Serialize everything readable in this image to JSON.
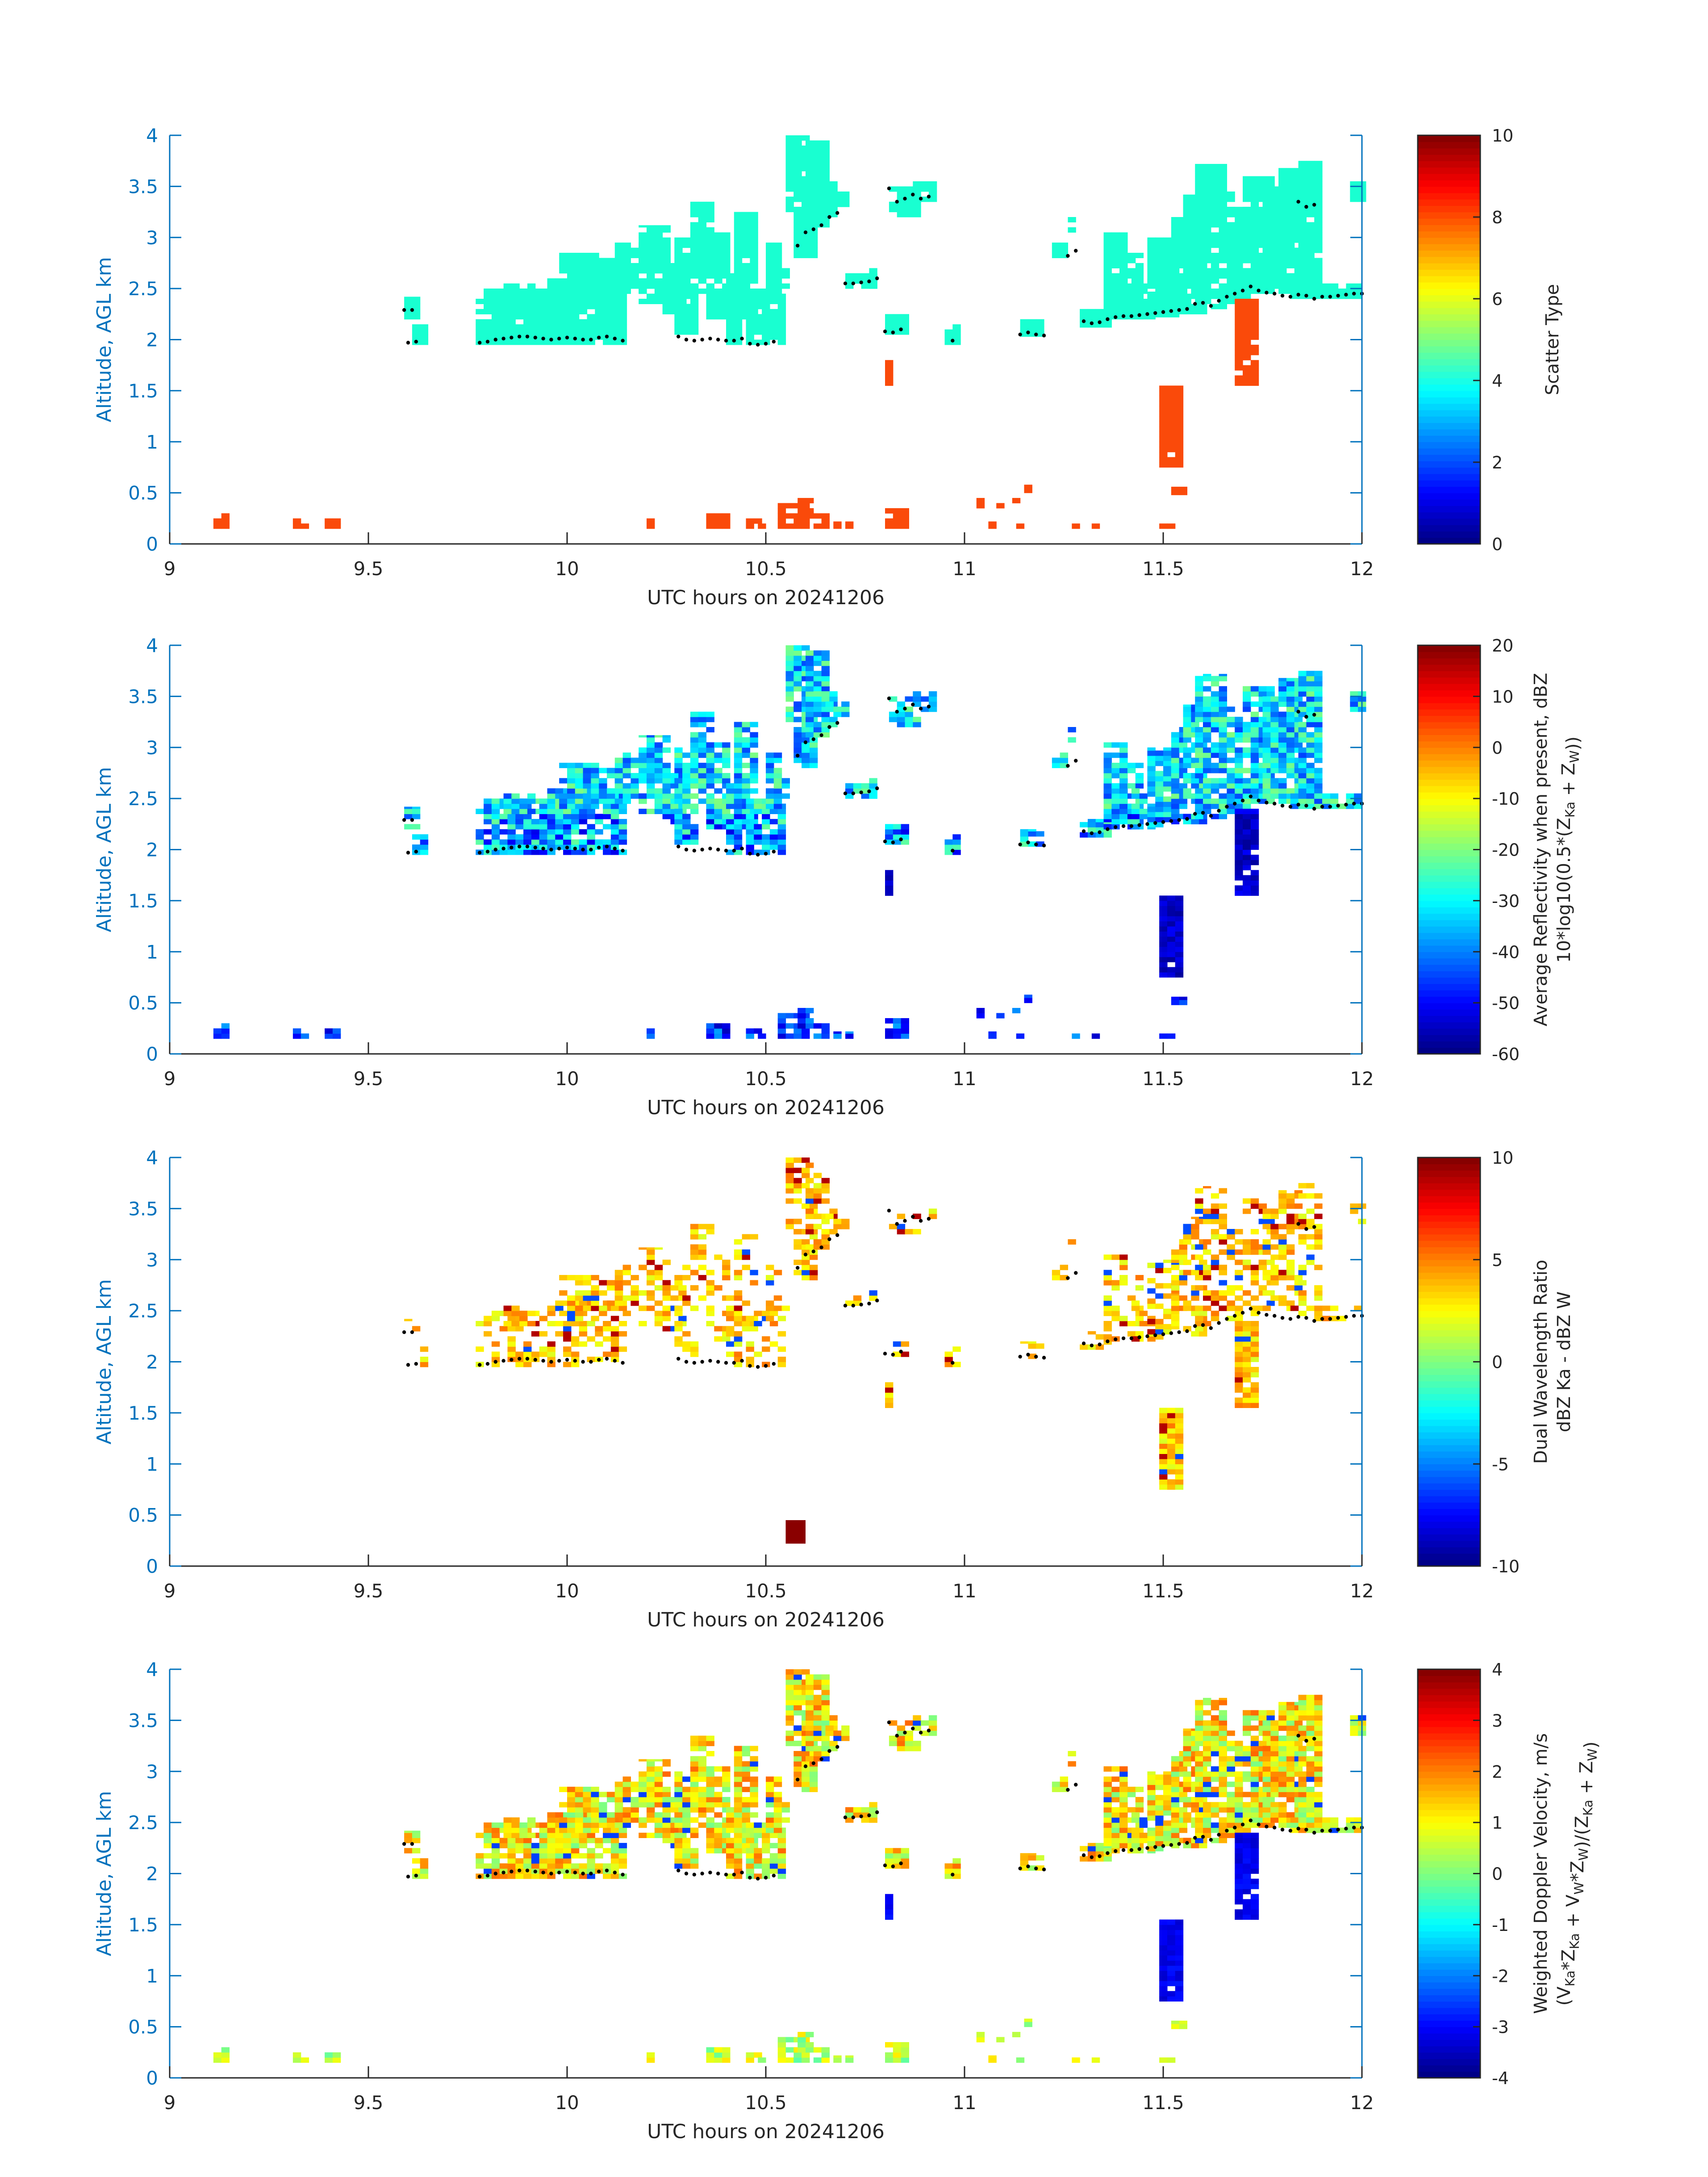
{
  "figure": {
    "colors": {
      "axis": "#0072bd",
      "background": "#ffffff",
      "bottom_line": "#262626"
    }
  },
  "chart_data": [
    {
      "type": "heatmap",
      "xlabel": "UTC hours on 20241206",
      "ylabel": "Altitude, AGL km",
      "xlim": [
        9,
        12
      ],
      "ylim": [
        0,
        4
      ],
      "xticks": [
        "9",
        "9.5",
        "10",
        "10.5",
        "11",
        "11.5",
        "12"
      ],
      "yticks": [
        "0",
        "0.5",
        "1",
        "1.5",
        "2",
        "2.5",
        "3",
        "3.5",
        "4"
      ],
      "colorbar": {
        "label": [
          "Scatter Type"
        ],
        "range": [
          0,
          10
        ],
        "ticks": [
          "0",
          "2",
          "4",
          "6",
          "8",
          "10"
        ]
      },
      "categories": [
        {
          "value": 3.8,
          "color": "#19ffd1"
        },
        {
          "value": 8.4,
          "color": "#fa4a0a"
        }
      ]
    },
    {
      "type": "heatmap",
      "xlabel": "UTC hours on 20241206",
      "ylabel": "Altitude, AGL km",
      "xlim": [
        9,
        12
      ],
      "ylim": [
        0,
        4
      ],
      "xticks": [
        "9",
        "9.5",
        "10",
        "10.5",
        "11",
        "11.5",
        "12"
      ],
      "yticks": [
        "0",
        "0.5",
        "1",
        "1.5",
        "2",
        "2.5",
        "3",
        "3.5",
        "4"
      ],
      "colorbar": {
        "label": [
          "Average Reflectivity when present, dBZ",
          "10*log10(0.5*(Z_Ka + Z_W))"
        ],
        "range": [
          -60,
          20
        ],
        "ticks": [
          "-60",
          "-50",
          "-40",
          "-30",
          "-20",
          "-10",
          "0",
          "10",
          "20"
        ]
      }
    },
    {
      "type": "heatmap",
      "xlabel": "UTC hours on 20241206",
      "ylabel": "Altitude, AGL km",
      "xlim": [
        9,
        12
      ],
      "ylim": [
        0,
        4
      ],
      "xticks": [
        "9",
        "9.5",
        "10",
        "10.5",
        "11",
        "11.5",
        "12"
      ],
      "yticks": [
        "0",
        "0.5",
        "1",
        "1.5",
        "2",
        "2.5",
        "3",
        "3.5",
        "4"
      ],
      "colorbar": {
        "label": [
          "Dual Wavelength Ratio",
          "dBZ Ka - dBZ W"
        ],
        "range": [
          -10,
          10
        ],
        "ticks": [
          "-10",
          "-5",
          "0",
          "5",
          "10"
        ]
      }
    },
    {
      "type": "heatmap",
      "xlabel": "UTC hours on 20241206",
      "ylabel": "Altitude, AGL km",
      "xlim": [
        9,
        12
      ],
      "ylim": [
        0,
        4
      ],
      "xticks": [
        "9",
        "9.5",
        "10",
        "10.5",
        "11",
        "11.5",
        "12"
      ],
      "yticks": [
        "0",
        "0.5",
        "1",
        "1.5",
        "2",
        "2.5",
        "3",
        "3.5",
        "4"
      ],
      "colorbar": {
        "label": [
          "Weighted Doppler Velocity, m/s",
          "(V_Ka*Z_Ka + V_W*Z_W)/(Z_Ka + Z_W)"
        ],
        "range": [
          -4,
          4
        ],
        "ticks": [
          "-4",
          "-3",
          "-2",
          "-1",
          "0",
          "1",
          "2",
          "3",
          "4"
        ]
      }
    }
  ],
  "cloud_base_points": [
    [
      9.59,
      2.29
    ],
    [
      9.61,
      2.29
    ],
    [
      9.6,
      1.97
    ],
    [
      9.62,
      1.98
    ],
    [
      9.78,
      1.97
    ],
    [
      9.8,
      1.98
    ],
    [
      9.82,
      2.0
    ],
    [
      9.84,
      2.01
    ],
    [
      9.86,
      2.02
    ],
    [
      9.88,
      2.03
    ],
    [
      9.9,
      2.03
    ],
    [
      9.92,
      2.02
    ],
    [
      9.94,
      2.01
    ],
    [
      9.96,
      2.0
    ],
    [
      9.98,
      2.01
    ],
    [
      10.0,
      2.02
    ],
    [
      10.02,
      2.01
    ],
    [
      10.04,
      2.0
    ],
    [
      10.06,
      2.0
    ],
    [
      10.08,
      2.02
    ],
    [
      10.1,
      2.03
    ],
    [
      10.12,
      2.01
    ],
    [
      10.14,
      1.99
    ],
    [
      10.28,
      2.03
    ],
    [
      10.3,
      2.0
    ],
    [
      10.32,
      1.99
    ],
    [
      10.34,
      2.0
    ],
    [
      10.36,
      2.01
    ],
    [
      10.38,
      2.0
    ],
    [
      10.4,
      1.99
    ],
    [
      10.42,
      1.99
    ],
    [
      10.44,
      2.01
    ],
    [
      10.46,
      1.96
    ],
    [
      10.48,
      1.95
    ],
    [
      10.5,
      1.96
    ],
    [
      10.52,
      1.98
    ],
    [
      10.58,
      2.92
    ],
    [
      10.6,
      3.05
    ],
    [
      10.62,
      3.08
    ],
    [
      10.64,
      3.12
    ],
    [
      10.66,
      3.2
    ],
    [
      10.68,
      3.24
    ],
    [
      10.7,
      2.55
    ],
    [
      10.72,
      2.55
    ],
    [
      10.74,
      2.56
    ],
    [
      10.76,
      2.57
    ],
    [
      10.78,
      2.6
    ],
    [
      10.8,
      2.08
    ],
    [
      10.82,
      2.07
    ],
    [
      10.84,
      2.1
    ],
    [
      10.81,
      3.48
    ],
    [
      10.83,
      3.35
    ],
    [
      10.85,
      3.38
    ],
    [
      10.87,
      3.42
    ],
    [
      10.89,
      3.38
    ],
    [
      10.91,
      3.4
    ],
    [
      10.97,
      1.99
    ],
    [
      11.14,
      2.05
    ],
    [
      11.16,
      2.07
    ],
    [
      11.18,
      2.05
    ],
    [
      11.2,
      2.04
    ],
    [
      11.26,
      2.82
    ],
    [
      11.28,
      2.87
    ],
    [
      11.3,
      2.18
    ],
    [
      11.32,
      2.16
    ],
    [
      11.34,
      2.17
    ],
    [
      11.36,
      2.2
    ],
    [
      11.38,
      2.22
    ],
    [
      11.4,
      2.23
    ],
    [
      11.42,
      2.23
    ],
    [
      11.44,
      2.24
    ],
    [
      11.46,
      2.25
    ],
    [
      11.48,
      2.26
    ],
    [
      11.5,
      2.27
    ],
    [
      11.52,
      2.28
    ],
    [
      11.54,
      2.29
    ],
    [
      11.56,
      2.3
    ],
    [
      11.58,
      2.35
    ],
    [
      11.6,
      2.36
    ],
    [
      11.62,
      2.33
    ],
    [
      11.64,
      2.38
    ],
    [
      11.66,
      2.42
    ],
    [
      11.68,
      2.45
    ],
    [
      11.7,
      2.48
    ],
    [
      11.72,
      2.52
    ],
    [
      11.74,
      2.48
    ],
    [
      11.76,
      2.46
    ],
    [
      11.78,
      2.45
    ],
    [
      11.8,
      2.43
    ],
    [
      11.82,
      2.42
    ],
    [
      11.84,
      2.44
    ],
    [
      11.86,
      2.43
    ],
    [
      11.88,
      2.4
    ],
    [
      11.9,
      2.42
    ],
    [
      11.92,
      2.42
    ],
    [
      11.94,
      2.43
    ],
    [
      11.96,
      2.44
    ],
    [
      11.98,
      2.45
    ],
    [
      12.0,
      2.45
    ],
    [
      11.84,
      3.35
    ],
    [
      11.86,
      3.3
    ],
    [
      11.88,
      3.32
    ]
  ],
  "echo_regions": [
    [
      9.59,
      9.62,
      2.2,
      2.42
    ],
    [
      9.61,
      9.64,
      1.95,
      2.15
    ],
    [
      9.77,
      9.79,
      1.95,
      2.4
    ],
    [
      9.79,
      9.95,
      1.95,
      2.5
    ],
    [
      9.84,
      9.91,
      2.35,
      2.55
    ],
    [
      9.95,
      10.14,
      1.95,
      2.6
    ],
    [
      9.98,
      10.08,
      2.4,
      2.85
    ],
    [
      10.04,
      10.14,
      2.45,
      2.8
    ],
    [
      10.12,
      10.2,
      2.45,
      2.95
    ],
    [
      10.18,
      10.26,
      2.35,
      3.12
    ],
    [
      10.24,
      10.29,
      2.25,
      2.75
    ],
    [
      10.27,
      10.33,
      2.05,
      3.0
    ],
    [
      10.31,
      10.36,
      2.45,
      3.35
    ],
    [
      10.35,
      10.41,
      2.2,
      3.05
    ],
    [
      10.4,
      10.44,
      1.95,
      2.65
    ],
    [
      10.42,
      10.48,
      2.2,
      3.25
    ],
    [
      10.45,
      10.54,
      1.95,
      2.5
    ],
    [
      10.5,
      10.54,
      2.4,
      2.95
    ],
    [
      10.54,
      10.56,
      2.5,
      2.7
    ],
    [
      10.55,
      10.6,
      3.25,
      4.0
    ],
    [
      10.57,
      10.62,
      2.8,
      3.55
    ],
    [
      10.6,
      10.65,
      3.1,
      3.95
    ],
    [
      10.62,
      10.68,
      3.2,
      3.55
    ],
    [
      10.65,
      10.7,
      3.3,
      3.45
    ],
    [
      10.7,
      10.77,
      2.5,
      2.65
    ],
    [
      10.76,
      10.78,
      2.5,
      2.7
    ],
    [
      10.8,
      10.86,
      2.05,
      2.25
    ],
    [
      10.81,
      10.88,
      3.2,
      3.5
    ],
    [
      10.87,
      10.92,
      3.35,
      3.55
    ],
    [
      10.95,
      10.99,
      1.95,
      2.15
    ],
    [
      11.14,
      11.2,
      2.03,
      2.2
    ],
    [
      11.22,
      11.25,
      2.8,
      2.95
    ],
    [
      11.26,
      11.28,
      3.05,
      3.2
    ],
    [
      11.29,
      11.36,
      2.12,
      2.3
    ],
    [
      11.35,
      11.4,
      2.2,
      3.05
    ],
    [
      11.39,
      11.44,
      2.2,
      2.85
    ],
    [
      11.42,
      11.48,
      2.2,
      2.6
    ],
    [
      11.46,
      11.53,
      2.22,
      3.0
    ],
    [
      11.52,
      11.56,
      2.25,
      3.2
    ],
    [
      11.55,
      11.6,
      2.25,
      3.42
    ],
    [
      11.58,
      11.65,
      2.3,
      3.72
    ],
    [
      11.64,
      11.68,
      2.35,
      3.45
    ],
    [
      11.66,
      11.72,
      2.4,
      3.3
    ],
    [
      11.7,
      11.77,
      2.45,
      3.6
    ],
    [
      11.75,
      11.81,
      2.5,
      3.5
    ],
    [
      11.79,
      11.85,
      2.5,
      3.68
    ],
    [
      11.84,
      11.9,
      2.55,
      3.75
    ],
    [
      11.77,
      11.83,
      2.45,
      2.65
    ],
    [
      11.82,
      11.99,
      2.4,
      2.55
    ],
    [
      11.97,
      12.0,
      3.35,
      3.55
    ]
  ],
  "low_regions": [
    [
      9.11,
      9.14,
      0.15,
      0.3
    ],
    [
      9.31,
      9.34,
      0.15,
      0.3
    ],
    [
      9.39,
      9.42,
      0.15,
      0.25
    ],
    [
      10.2,
      10.22,
      0.15,
      0.25
    ],
    [
      10.35,
      10.4,
      0.15,
      0.3
    ],
    [
      10.45,
      10.48,
      0.15,
      0.25
    ],
    [
      10.48,
      10.5,
      0.15,
      0.2
    ],
    [
      10.53,
      10.6,
      0.15,
      0.4
    ],
    [
      10.58,
      10.62,
      0.25,
      0.45
    ],
    [
      10.62,
      10.65,
      0.15,
      0.3
    ],
    [
      10.67,
      10.69,
      0.15,
      0.22
    ],
    [
      10.7,
      10.72,
      0.15,
      0.22
    ],
    [
      10.8,
      10.85,
      0.15,
      0.35
    ],
    [
      11.03,
      11.05,
      0.35,
      0.45
    ],
    [
      11.08,
      11.1,
      0.35,
      0.42
    ],
    [
      11.12,
      11.14,
      0.4,
      0.5
    ],
    [
      11.15,
      11.17,
      0.5,
      0.58
    ],
    [
      11.06,
      11.08,
      0.15,
      0.22
    ],
    [
      11.13,
      11.15,
      0.15,
      0.22
    ],
    [
      11.27,
      11.29,
      0.15,
      0.2
    ],
    [
      11.32,
      11.34,
      0.15,
      0.2
    ],
    [
      11.49,
      11.52,
      0.15,
      0.2
    ],
    [
      11.52,
      11.55,
      0.48,
      0.56
    ]
  ],
  "columns": [
    [
      10.8,
      10.82,
      1.55,
      1.8
    ],
    [
      11.49,
      11.55,
      0.75,
      1.55
    ],
    [
      11.68,
      11.73,
      1.55,
      2.4
    ]
  ]
}
